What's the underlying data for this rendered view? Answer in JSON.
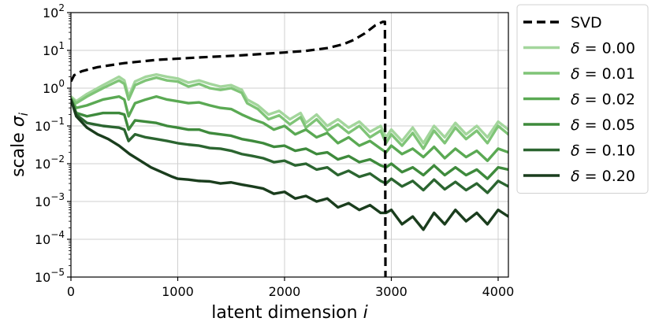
{
  "chart_data": {
    "type": "line",
    "title": "",
    "xlabel": "latent dimension",
    "xlabel_var": "i",
    "ylabel": "scale",
    "ylabel_var": "σ",
    "ylabel_sub": "i",
    "x_scale": "linear",
    "y_scale": "log",
    "xlim": [
      0,
      4096
    ],
    "ylim": [
      1e-05,
      100
    ],
    "x_ticks": [
      0,
      1000,
      2000,
      3000,
      4000
    ],
    "x_tick_labels": [
      "0",
      "1000",
      "2000",
      "3000",
      "4000"
    ],
    "y_ticks": [
      1e-05,
      0.0001,
      0.001,
      0.01,
      0.1,
      1,
      10,
      100
    ],
    "y_tick_labels": [
      {
        "base": "10",
        "exp": "−5"
      },
      {
        "base": "10",
        "exp": "−4"
      },
      {
        "base": "10",
        "exp": "−3"
      },
      {
        "base": "10",
        "exp": "−2"
      },
      {
        "base": "10",
        "exp": "−1"
      },
      {
        "base": "10",
        "exp": "0"
      },
      {
        "base": "10",
        "exp": "1"
      },
      {
        "base": "10",
        "exp": "2"
      }
    ],
    "grid": true,
    "legend_position": "outside-right",
    "series": [
      {
        "name": "SVD",
        "style": "dashed",
        "color": "#000000",
        "x": [
          0,
          30,
          100,
          250,
          500,
          800,
          1200,
          1600,
          2000,
          2200,
          2400,
          2550,
          2650,
          2750,
          2850,
          2920,
          2940,
          2945,
          2950
        ],
        "y": [
          1.5,
          2.2,
          2.8,
          3.6,
          4.6,
          5.6,
          6.5,
          7.4,
          8.8,
          9.7,
          11.5,
          14.5,
          19,
          28,
          46,
          57,
          57,
          1e-05,
          1e-05
        ]
      },
      {
        "name": "δ = 0.00",
        "color": "#a3d69c",
        "x": [
          0,
          50,
          150,
          300,
          450,
          500,
          540,
          600,
          700,
          800,
          900,
          1000,
          1100,
          1200,
          1300,
          1400,
          1500,
          1600,
          1650,
          1750,
          1850,
          1950,
          2050,
          2150,
          2200,
          2300,
          2400,
          2500,
          2600,
          2700,
          2800,
          2900,
          2950,
          3000,
          3100,
          3200,
          3300,
          3400,
          3500,
          3600,
          3700,
          3800,
          3900,
          4000,
          4096
        ],
        "y": [
          0.6,
          0.45,
          0.7,
          1.2,
          2.0,
          1.6,
          0.6,
          1.5,
          2.0,
          2.3,
          2.0,
          1.8,
          1.4,
          1.6,
          1.3,
          1.1,
          1.2,
          0.9,
          0.5,
          0.35,
          0.2,
          0.25,
          0.15,
          0.22,
          0.12,
          0.2,
          0.1,
          0.15,
          0.09,
          0.13,
          0.07,
          0.1,
          0.05,
          0.08,
          0.04,
          0.09,
          0.035,
          0.1,
          0.05,
          0.12,
          0.06,
          0.1,
          0.05,
          0.13,
          0.08
        ]
      },
      {
        "name": "δ = 0.01",
        "color": "#7fc477",
        "x": [
          0,
          50,
          150,
          300,
          450,
          500,
          540,
          600,
          700,
          800,
          900,
          1000,
          1100,
          1200,
          1300,
          1400,
          1500,
          1600,
          1650,
          1750,
          1850,
          1950,
          2050,
          2150,
          2200,
          2300,
          2400,
          2500,
          2600,
          2700,
          2800,
          2900,
          2950,
          3000,
          3100,
          3200,
          3300,
          3400,
          3500,
          3600,
          3700,
          3800,
          3900,
          4000,
          4096
        ],
        "y": [
          0.55,
          0.4,
          0.6,
          1.0,
          1.6,
          1.3,
          0.5,
          1.2,
          1.6,
          1.9,
          1.6,
          1.5,
          1.1,
          1.3,
          1.0,
          0.9,
          1.0,
          0.75,
          0.4,
          0.28,
          0.15,
          0.19,
          0.11,
          0.17,
          0.09,
          0.15,
          0.075,
          0.11,
          0.065,
          0.1,
          0.05,
          0.075,
          0.035,
          0.06,
          0.03,
          0.065,
          0.025,
          0.075,
          0.035,
          0.09,
          0.045,
          0.075,
          0.035,
          0.1,
          0.06
        ]
      },
      {
        "name": "δ = 0.02",
        "color": "#5aa953",
        "x": [
          0,
          50,
          150,
          300,
          450,
          500,
          540,
          600,
          700,
          800,
          900,
          1000,
          1100,
          1200,
          1300,
          1400,
          1500,
          1600,
          1700,
          1800,
          1900,
          2000,
          2100,
          2200,
          2300,
          2400,
          2500,
          2600,
          2700,
          2800,
          2900,
          2950,
          3000,
          3100,
          3200,
          3300,
          3400,
          3500,
          3600,
          3700,
          3800,
          3900,
          4000,
          4096
        ],
        "y": [
          0.5,
          0.3,
          0.35,
          0.5,
          0.6,
          0.5,
          0.18,
          0.4,
          0.5,
          0.6,
          0.5,
          0.45,
          0.4,
          0.42,
          0.35,
          0.3,
          0.28,
          0.2,
          0.15,
          0.12,
          0.08,
          0.1,
          0.06,
          0.08,
          0.05,
          0.065,
          0.035,
          0.05,
          0.03,
          0.04,
          0.025,
          0.02,
          0.03,
          0.018,
          0.025,
          0.015,
          0.028,
          0.014,
          0.025,
          0.015,
          0.022,
          0.012,
          0.025,
          0.02
        ]
      },
      {
        "name": "δ = 0.05",
        "color": "#3e8a3c",
        "x": [
          0,
          50,
          150,
          300,
          450,
          500,
          540,
          600,
          700,
          800,
          900,
          1000,
          1100,
          1200,
          1300,
          1400,
          1500,
          1600,
          1700,
          1800,
          1900,
          2000,
          2100,
          2200,
          2300,
          2400,
          2500,
          2600,
          2700,
          2800,
          2900,
          2950,
          3000,
          3100,
          3200,
          3300,
          3400,
          3500,
          3600,
          3700,
          3800,
          3900,
          4000,
          4096
        ],
        "y": [
          0.5,
          0.22,
          0.18,
          0.22,
          0.22,
          0.2,
          0.08,
          0.14,
          0.13,
          0.12,
          0.1,
          0.09,
          0.08,
          0.08,
          0.065,
          0.06,
          0.055,
          0.045,
          0.04,
          0.035,
          0.028,
          0.03,
          0.022,
          0.025,
          0.018,
          0.02,
          0.013,
          0.016,
          0.011,
          0.013,
          0.009,
          0.008,
          0.01,
          0.006,
          0.008,
          0.005,
          0.009,
          0.005,
          0.008,
          0.005,
          0.007,
          0.004,
          0.008,
          0.007
        ]
      },
      {
        "name": "δ = 0.10",
        "color": "#2b6530",
        "x": [
          0,
          50,
          150,
          300,
          450,
          500,
          540,
          600,
          700,
          800,
          900,
          1000,
          1100,
          1200,
          1300,
          1400,
          1500,
          1600,
          1700,
          1800,
          1900,
          2000,
          2100,
          2200,
          2300,
          2400,
          2500,
          2600,
          2700,
          2800,
          2900,
          2950,
          3000,
          3100,
          3200,
          3300,
          3400,
          3500,
          3600,
          3700,
          3800,
          3900,
          4000,
          4096
        ],
        "y": [
          0.5,
          0.2,
          0.12,
          0.1,
          0.09,
          0.08,
          0.04,
          0.06,
          0.05,
          0.045,
          0.04,
          0.035,
          0.032,
          0.03,
          0.026,
          0.025,
          0.022,
          0.018,
          0.016,
          0.014,
          0.011,
          0.012,
          0.009,
          0.01,
          0.007,
          0.008,
          0.005,
          0.0065,
          0.0045,
          0.0055,
          0.0035,
          0.003,
          0.004,
          0.0025,
          0.0035,
          0.002,
          0.0038,
          0.0021,
          0.0033,
          0.002,
          0.003,
          0.0017,
          0.0035,
          0.0025
        ]
      },
      {
        "name": "δ = 0.20",
        "color": "#1a3d1d",
        "x": [
          0,
          50,
          150,
          250,
          350,
          450,
          550,
          650,
          750,
          850,
          950,
          1000,
          1100,
          1200,
          1300,
          1400,
          1500,
          1600,
          1700,
          1800,
          1900,
          2000,
          2100,
          2200,
          2300,
          2400,
          2500,
          2600,
          2700,
          2800,
          2900,
          2950,
          3000,
          3100,
          3200,
          3300,
          3400,
          3500,
          3600,
          3700,
          3800,
          3900,
          4000,
          4096
        ],
        "y": [
          0.5,
          0.18,
          0.09,
          0.06,
          0.045,
          0.03,
          0.018,
          0.012,
          0.008,
          0.006,
          0.0045,
          0.004,
          0.0038,
          0.0035,
          0.0034,
          0.003,
          0.0032,
          0.0028,
          0.0025,
          0.0022,
          0.0016,
          0.0018,
          0.0012,
          0.0014,
          0.001,
          0.0012,
          0.0007,
          0.0009,
          0.0006,
          0.0008,
          0.0005,
          0.0005,
          0.0006,
          0.00025,
          0.0004,
          0.00018,
          0.0005,
          0.00025,
          0.0006,
          0.0003,
          0.0005,
          0.00025,
          0.0006,
          0.0004
        ]
      }
    ]
  }
}
